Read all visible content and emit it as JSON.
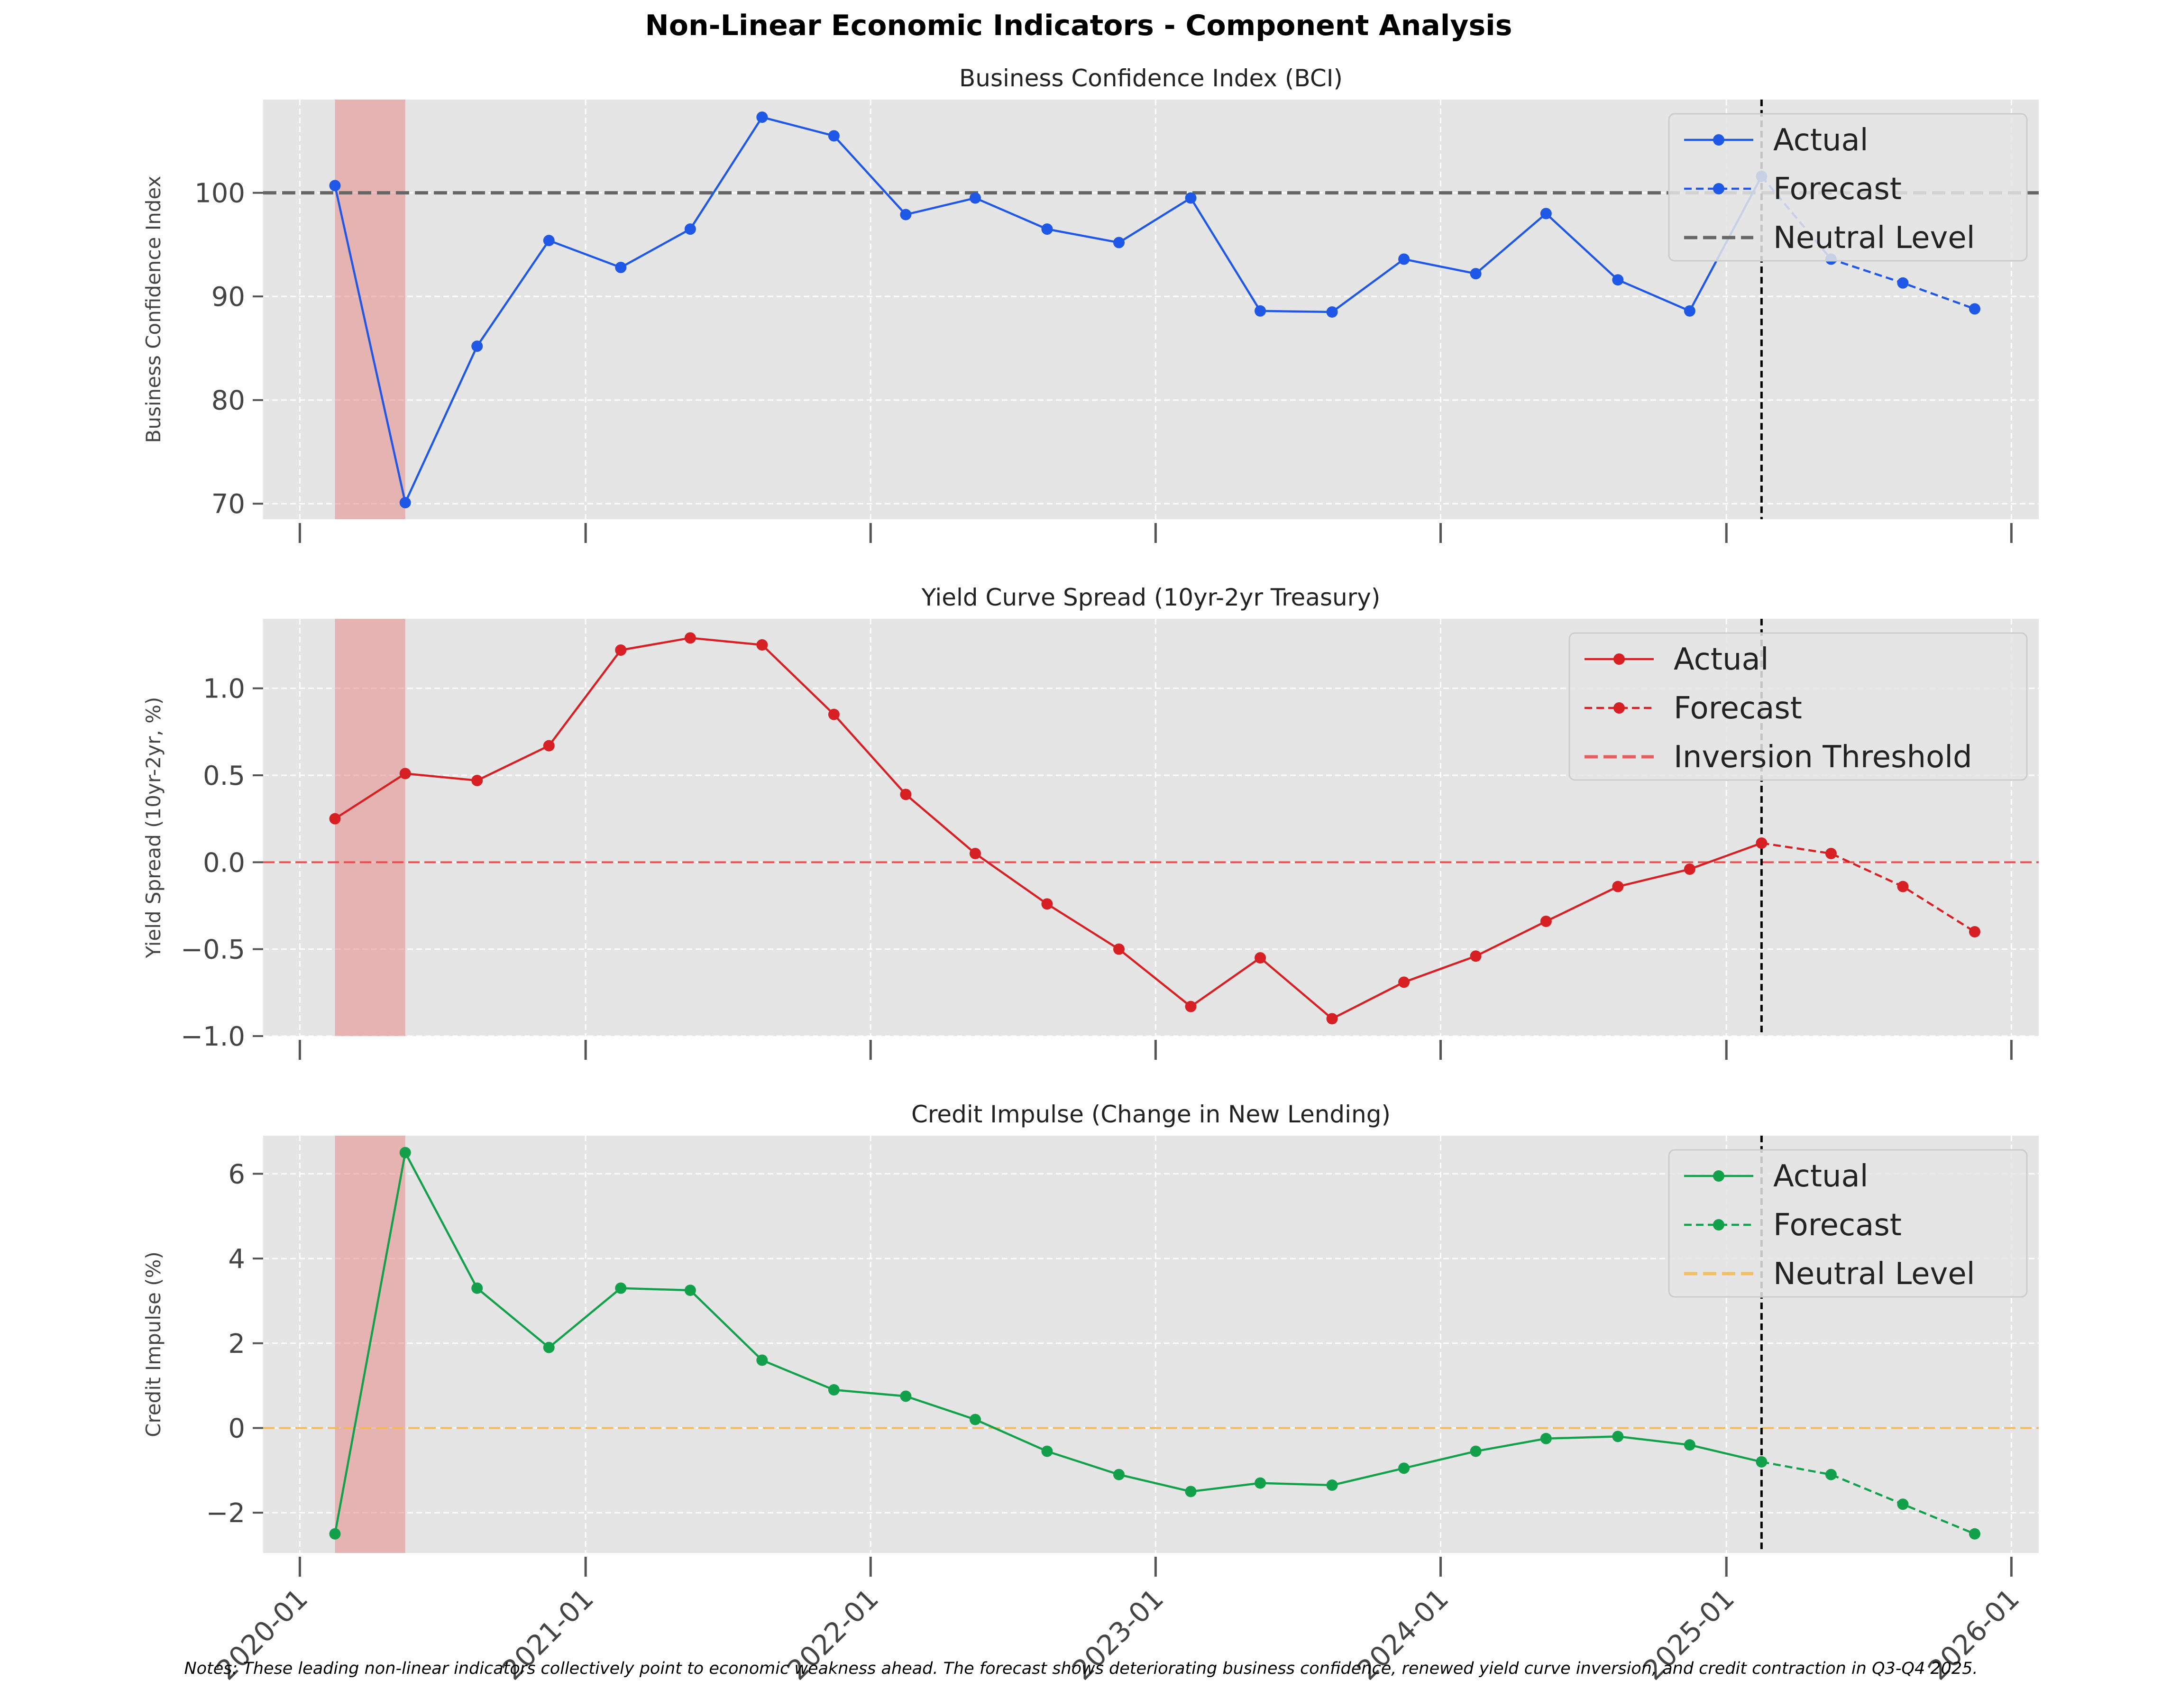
{
  "figure": {
    "title": "Non-Linear Economic Indicators - Component Analysis",
    "notes": "Notes: These leading non-linear indicators collectively point to economic weakness ahead. The forecast shows deteriorating business confidence, renewed yield curve inversion, and credit contraction in Q3-Q4 2025."
  },
  "chart_data": [
    {
      "type": "line",
      "title": "Business Confidence Index (BCI)",
      "ylabel": "Business Confidence Index",
      "xlim": [
        "2019-11-15",
        "2026-02-05"
      ],
      "ylim": [
        68.5,
        109
      ],
      "yticks": [
        70,
        80,
        90,
        100
      ],
      "xticks": [
        "2020-01",
        "2021-01",
        "2022-01",
        "2023-01",
        "2024-01",
        "2025-01",
        "2026-01"
      ],
      "show_xtick_labels": false,
      "grid": true,
      "legend_position": "top-right",
      "color": "#1f57e7",
      "actual": {
        "name": "Actual",
        "x": [
          "2020-02-15",
          "2020-05-15",
          "2020-08-15",
          "2020-11-15",
          "2021-02-15",
          "2021-05-15",
          "2021-08-15",
          "2021-11-15",
          "2022-02-15",
          "2022-05-15",
          "2022-08-15",
          "2022-11-15",
          "2023-02-15",
          "2023-05-15",
          "2023-08-15",
          "2023-11-15",
          "2024-02-15",
          "2024-05-15",
          "2024-08-15",
          "2024-11-15",
          "2025-02-15"
        ],
        "y": [
          100.7,
          70.1,
          85.2,
          95.4,
          92.8,
          96.5,
          107.3,
          105.5,
          97.9,
          99.5,
          96.5,
          95.2,
          99.5,
          88.6,
          88.5,
          93.6,
          92.2,
          98.0,
          91.6,
          88.6,
          101.6
        ]
      },
      "forecast": {
        "name": "Forecast",
        "x": [
          "2025-02-15",
          "2025-05-15",
          "2025-08-15",
          "2025-11-15"
        ],
        "y": [
          101.6,
          93.6,
          91.3,
          88.8
        ]
      },
      "reference_line": {
        "name": "Neutral Level",
        "y": 100,
        "color": "#666666"
      },
      "shaded_region": [
        "2020-02-15",
        "2020-05-15"
      ],
      "vertical_line": "2025-02-15"
    },
    {
      "type": "line",
      "title": "Yield Curve Spread (10yr-2yr Treasury)",
      "ylabel": "Yield Spread (10yr-2yr, %)",
      "xlim": [
        "2019-11-15",
        "2026-02-05"
      ],
      "ylim": [
        -1.0,
        1.4
      ],
      "yticks": [
        -1.0,
        -0.5,
        0.0,
        0.5,
        1.0
      ],
      "ytick_labels": [
        "−1.0",
        "−0.5",
        "0.0",
        "0.5",
        "1.0"
      ],
      "xticks": [
        "2020-01",
        "2021-01",
        "2022-01",
        "2023-01",
        "2024-01",
        "2025-01",
        "2026-01"
      ],
      "show_xtick_labels": false,
      "grid": true,
      "legend_position": "top-right",
      "color": "#d62024",
      "actual": {
        "name": "Actual",
        "x": [
          "2020-02-15",
          "2020-05-15",
          "2020-08-15",
          "2020-11-15",
          "2021-02-15",
          "2021-05-15",
          "2021-08-15",
          "2021-11-15",
          "2022-02-15",
          "2022-05-15",
          "2022-08-15",
          "2022-11-15",
          "2023-02-15",
          "2023-05-15",
          "2023-08-15",
          "2023-11-15",
          "2024-02-15",
          "2024-05-15",
          "2024-08-15",
          "2024-11-15",
          "2025-02-15"
        ],
        "y": [
          0.25,
          0.51,
          0.47,
          0.67,
          1.22,
          1.29,
          1.25,
          0.85,
          0.39,
          0.05,
          -0.24,
          -0.5,
          -0.83,
          -0.55,
          -0.9,
          -0.69,
          -0.54,
          -0.34,
          -0.14,
          -0.04,
          0.11
        ]
      },
      "forecast": {
        "name": "Forecast",
        "x": [
          "2025-02-15",
          "2025-05-15",
          "2025-08-15",
          "2025-11-15"
        ],
        "y": [
          0.11,
          0.05,
          -0.14,
          -0.4
        ]
      },
      "reference_line": {
        "name": "Inversion Threshold",
        "y": 0,
        "color": "#e8474b"
      },
      "shaded_region": [
        "2020-02-15",
        "2020-05-15"
      ],
      "vertical_line": "2025-02-15"
    },
    {
      "type": "line",
      "title": "Credit Impulse (Change in New Lending)",
      "ylabel": "Credit Impulse (%)",
      "xlim": [
        "2019-11-15",
        "2026-02-05"
      ],
      "ylim": [
        -2.95,
        6.9
      ],
      "yticks": [
        -2,
        0,
        2,
        4,
        6
      ],
      "ytick_labels": [
        "−2",
        "0",
        "2",
        "4",
        "6"
      ],
      "xticks": [
        "2020-01",
        "2021-01",
        "2022-01",
        "2023-01",
        "2024-01",
        "2025-01",
        "2026-01"
      ],
      "show_xtick_labels": true,
      "grid": true,
      "legend_position": "top-right",
      "color": "#12a04a",
      "actual": {
        "name": "Actual",
        "x": [
          "2020-02-15",
          "2020-05-15",
          "2020-08-15",
          "2020-11-15",
          "2021-02-15",
          "2021-05-15",
          "2021-08-15",
          "2021-11-15",
          "2022-02-15",
          "2022-05-15",
          "2022-08-15",
          "2022-11-15",
          "2023-02-15",
          "2023-05-15",
          "2023-08-15",
          "2023-11-15",
          "2024-02-15",
          "2024-05-15",
          "2024-08-15",
          "2024-11-15",
          "2025-02-15"
        ],
        "y": [
          -2.5,
          6.5,
          3.3,
          1.9,
          3.3,
          3.25,
          1.6,
          0.9,
          0.75,
          0.2,
          -0.55,
          -1.1,
          -1.5,
          -1.3,
          -1.35,
          -0.95,
          -0.55,
          -0.25,
          -0.2,
          -0.4,
          -0.8
        ]
      },
      "forecast": {
        "name": "Forecast",
        "x": [
          "2025-02-15",
          "2025-05-15",
          "2025-08-15",
          "2025-11-15"
        ],
        "y": [
          -0.8,
          -1.1,
          -1.8,
          -2.5
        ]
      },
      "reference_line": {
        "name": "Neutral Level",
        "y": 0,
        "color": "#f5b851"
      },
      "shaded_region": [
        "2020-02-15",
        "2020-05-15"
      ],
      "vertical_line": "2025-02-15"
    }
  ]
}
